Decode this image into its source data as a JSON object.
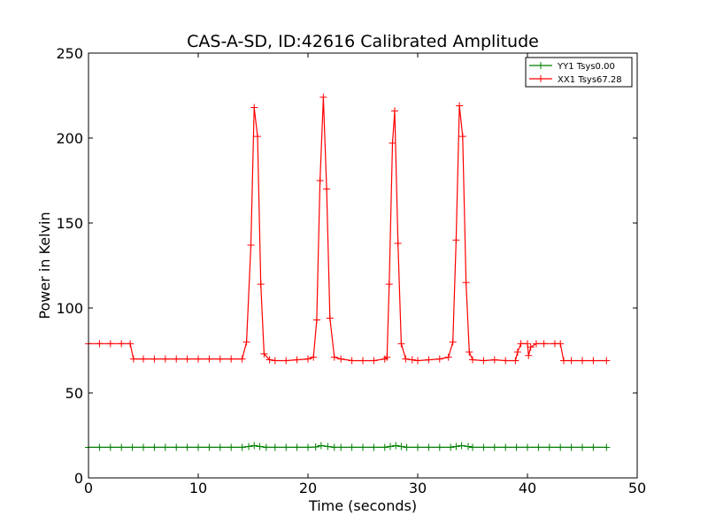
{
  "chart_data": {
    "type": "line",
    "title": "CAS-A-SD, ID:42616 Calibrated Amplitude",
    "xlabel": "Time (seconds)",
    "ylabel": "Power in Kelvin",
    "xlim": [
      0,
      50
    ],
    "ylim": [
      0,
      250
    ],
    "xticks": [
      "0",
      "10",
      "20",
      "30",
      "40",
      "50"
    ],
    "yticks": [
      "0",
      "50",
      "100",
      "150",
      "200",
      "250"
    ],
    "grid": false,
    "legend_position": "top-right",
    "marker": "plus",
    "series": [
      {
        "name": "YY1 Tsys0.00",
        "color": "#008000",
        "points": [
          [
            0,
            18
          ],
          [
            1,
            18
          ],
          [
            2,
            18
          ],
          [
            3,
            18
          ],
          [
            4,
            18
          ],
          [
            5,
            18
          ],
          [
            6,
            18
          ],
          [
            7,
            18
          ],
          [
            8,
            18
          ],
          [
            9,
            18
          ],
          [
            10,
            18
          ],
          [
            11,
            18
          ],
          [
            12,
            18
          ],
          [
            13,
            18
          ],
          [
            14,
            18
          ],
          [
            14.6,
            18.5
          ],
          [
            15.1,
            19
          ],
          [
            15.6,
            18.5
          ],
          [
            16.2,
            18
          ],
          [
            17,
            18
          ],
          [
            18,
            18
          ],
          [
            19,
            18
          ],
          [
            20,
            18
          ],
          [
            20.7,
            18.2
          ],
          [
            21.2,
            19
          ],
          [
            21.8,
            18.5
          ],
          [
            22.4,
            18
          ],
          [
            23,
            18
          ],
          [
            24,
            18
          ],
          [
            25,
            18
          ],
          [
            26,
            18
          ],
          [
            27,
            18
          ],
          [
            27.5,
            18.5
          ],
          [
            28,
            19
          ],
          [
            28.5,
            18.5
          ],
          [
            29,
            18
          ],
          [
            30,
            18
          ],
          [
            31,
            18
          ],
          [
            32,
            18
          ],
          [
            33,
            18
          ],
          [
            33.5,
            18.5
          ],
          [
            34,
            19
          ],
          [
            34.6,
            18.5
          ],
          [
            35,
            18
          ],
          [
            36,
            18
          ],
          [
            37,
            18
          ],
          [
            38,
            18
          ],
          [
            39,
            18
          ],
          [
            40,
            18
          ],
          [
            41,
            18
          ],
          [
            42,
            18
          ],
          [
            43,
            18
          ],
          [
            44,
            18
          ],
          [
            45,
            18
          ],
          [
            46,
            18
          ],
          [
            47.2,
            18
          ]
        ]
      },
      {
        "name": "XX1 Tsys67.28",
        "color": "#ff0000",
        "points": [
          [
            0,
            79
          ],
          [
            1,
            79
          ],
          [
            2,
            79
          ],
          [
            3,
            79
          ],
          [
            3.8,
            79
          ],
          [
            4.1,
            70
          ],
          [
            5,
            70
          ],
          [
            6,
            70
          ],
          [
            7,
            70
          ],
          [
            8,
            70
          ],
          [
            9,
            70
          ],
          [
            10,
            70
          ],
          [
            11,
            70
          ],
          [
            12,
            70
          ],
          [
            13,
            70
          ],
          [
            14,
            70
          ],
          [
            14.4,
            80
          ],
          [
            14.8,
            137
          ],
          [
            15.1,
            218
          ],
          [
            15.4,
            201
          ],
          [
            15.7,
            114
          ],
          [
            16.0,
            73
          ],
          [
            16.5,
            69.5
          ],
          [
            17,
            69
          ],
          [
            18,
            69
          ],
          [
            19,
            69.5
          ],
          [
            20,
            70
          ],
          [
            20.5,
            71
          ],
          [
            20.8,
            93
          ],
          [
            21.1,
            175
          ],
          [
            21.4,
            224
          ],
          [
            21.7,
            170
          ],
          [
            22,
            94
          ],
          [
            22.4,
            71
          ],
          [
            23,
            70
          ],
          [
            24,
            69
          ],
          [
            25,
            69
          ],
          [
            26,
            69
          ],
          [
            27,
            70
          ],
          [
            27.2,
            71
          ],
          [
            27.4,
            114
          ],
          [
            27.7,
            197
          ],
          [
            27.9,
            216
          ],
          [
            28.2,
            138
          ],
          [
            28.5,
            79
          ],
          [
            28.9,
            70
          ],
          [
            29.5,
            69.5
          ],
          [
            30,
            69
          ],
          [
            31,
            69.5
          ],
          [
            32,
            70
          ],
          [
            32.8,
            71
          ],
          [
            33.2,
            80
          ],
          [
            33.5,
            140
          ],
          [
            33.8,
            219
          ],
          [
            34.1,
            201
          ],
          [
            34.4,
            115
          ],
          [
            34.7,
            74
          ],
          [
            35,
            69.5
          ],
          [
            36,
            69
          ],
          [
            37,
            69.5
          ],
          [
            38,
            69
          ],
          [
            38.9,
            69
          ],
          [
            39.1,
            74
          ],
          [
            39.4,
            79
          ],
          [
            40,
            79
          ],
          [
            40.1,
            72
          ],
          [
            40.3,
            77
          ],
          [
            40.8,
            79
          ],
          [
            41.5,
            79
          ],
          [
            42.5,
            79
          ],
          [
            43,
            79
          ],
          [
            43.3,
            69
          ],
          [
            44,
            69
          ],
          [
            45,
            69
          ],
          [
            46,
            69
          ],
          [
            47.2,
            69
          ]
        ]
      }
    ]
  }
}
